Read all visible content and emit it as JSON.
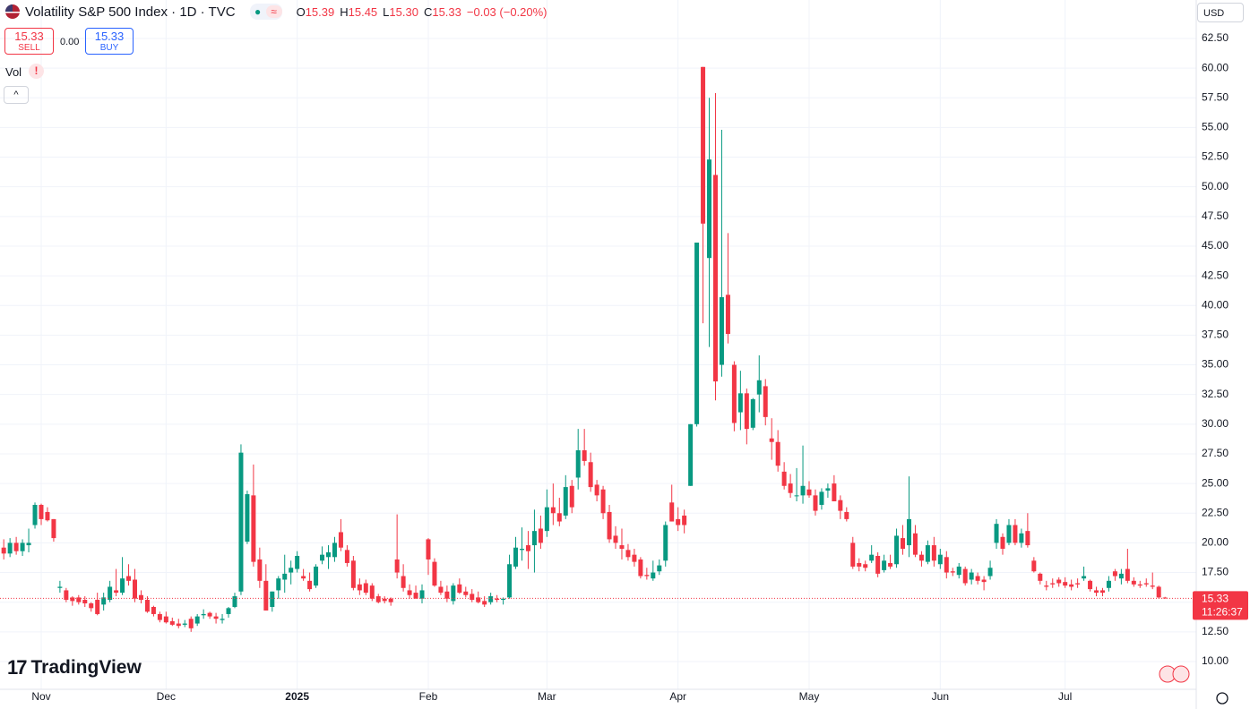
{
  "chart_data": {
    "type": "candlestick",
    "title": "Volatility S&P 500 Index · 1D · TVC",
    "ohlc_header": [
      {
        "label": "O",
        "value": "15.39"
      },
      {
        "label": "H",
        "value": "15.45"
      },
      {
        "label": "L",
        "value": "15.30"
      },
      {
        "label": "C",
        "value": "15.33"
      }
    ],
    "change": "−0.03 (−0.20%)",
    "sell": {
      "price": 15.33,
      "label": "SELL"
    },
    "spread": "0.00",
    "buy": {
      "price": 15.33,
      "label": "BUY"
    },
    "volume_label": "Vol",
    "currency": "USD",
    "branding": "TradingView",
    "up_color": "#089981",
    "down_color": "#f23645",
    "grid": true,
    "candles": [
      [
        19.6,
        20.3,
        18.6,
        19.1
      ],
      [
        19.1,
        20.4,
        18.8,
        20.0
      ],
      [
        20.0,
        20.5,
        19.0,
        19.3
      ],
      [
        19.3,
        20.3,
        18.9,
        20.0
      ],
      [
        19.8,
        21.2,
        19.2,
        20.0
      ],
      [
        21.5,
        23.4,
        21.2,
        23.2
      ],
      [
        23.2,
        23.3,
        21.5,
        22.0
      ],
      [
        22.6,
        23.0,
        21.8,
        21.9
      ],
      [
        22.0,
        22.0,
        20.1,
        20.4
      ],
      [
        16.2,
        16.8,
        15.8,
        16.3
      ],
      [
        16.0,
        16.2,
        15.0,
        15.2
      ],
      [
        15.4,
        15.5,
        14.7,
        15.1
      ],
      [
        15.4,
        15.6,
        14.8,
        15.0
      ],
      [
        15.2,
        15.5,
        14.6,
        14.9
      ],
      [
        14.9,
        15.0,
        14.2,
        14.5
      ],
      [
        15.2,
        15.8,
        13.9,
        14.0
      ],
      [
        14.8,
        15.8,
        14.3,
        15.4
      ],
      [
        15.2,
        16.8,
        15.0,
        16.3
      ],
      [
        16.0,
        17.8,
        15.5,
        15.8
      ],
      [
        15.8,
        18.8,
        15.6,
        17.0
      ],
      [
        17.2,
        18.2,
        16.4,
        16.8
      ],
      [
        16.9,
        17.8,
        15.0,
        15.3
      ],
      [
        15.6,
        16.0,
        14.9,
        15.2
      ],
      [
        15.2,
        15.5,
        14.1,
        14.2
      ],
      [
        14.6,
        14.7,
        13.8,
        14.0
      ],
      [
        14.0,
        14.2,
        13.3,
        13.5
      ],
      [
        13.8,
        14.2,
        13.2,
        13.3
      ],
      [
        13.4,
        13.7,
        13.0,
        13.1
      ],
      [
        13.2,
        13.6,
        12.8,
        13.0
      ],
      [
        13.1,
        13.5,
        12.9,
        13.2
      ],
      [
        13.6,
        13.8,
        12.5,
        12.8
      ],
      [
        13.2,
        14.0,
        13.0,
        13.8
      ],
      [
        13.9,
        14.4,
        13.6,
        14.0
      ],
      [
        14.1,
        14.2,
        13.6,
        13.8
      ],
      [
        13.8,
        14.1,
        13.2,
        13.6
      ],
      [
        13.5,
        14.0,
        13.2,
        13.6
      ],
      [
        14.0,
        14.6,
        13.7,
        14.5
      ],
      [
        14.6,
        15.8,
        14.5,
        15.5
      ],
      [
        15.9,
        28.3,
        15.6,
        27.6
      ],
      [
        20.1,
        24.4,
        19.9,
        24.1
      ],
      [
        24.0,
        26.6,
        18.0,
        18.4
      ],
      [
        18.6,
        19.6,
        16.2,
        16.8
      ],
      [
        16.8,
        18.2,
        14.3,
        14.3
      ],
      [
        14.6,
        15.9,
        14.2,
        15.9
      ],
      [
        16.0,
        17.2,
        15.3,
        17.0
      ],
      [
        16.9,
        19.0,
        15.8,
        17.4
      ],
      [
        17.5,
        18.5,
        16.5,
        17.9
      ],
      [
        17.8,
        19.3,
        17.5,
        18.9
      ],
      [
        17.2,
        17.8,
        16.8,
        17.0
      ],
      [
        16.8,
        17.5,
        15.9,
        16.1
      ],
      [
        16.4,
        18.2,
        16.2,
        18.0
      ],
      [
        18.5,
        19.7,
        18.2,
        19.0
      ],
      [
        18.8,
        19.8,
        17.8,
        19.2
      ],
      [
        18.8,
        20.5,
        18.4,
        20.0
      ],
      [
        20.9,
        22.0,
        19.3,
        19.6
      ],
      [
        19.4,
        19.8,
        18.0,
        18.3
      ],
      [
        18.5,
        18.9,
        16.0,
        16.2
      ],
      [
        16.5,
        17.0,
        15.6,
        16.0
      ],
      [
        16.6,
        16.9,
        15.6,
        15.8
      ],
      [
        16.4,
        16.6,
        15.1,
        15.3
      ],
      [
        15.5,
        15.7,
        14.9,
        15.0
      ],
      [
        15.3,
        15.5,
        14.9,
        15.1
      ],
      [
        15.3,
        15.4,
        14.7,
        15.0
      ],
      [
        18.6,
        22.4,
        17.0,
        17.5
      ],
      [
        17.2,
        18.2,
        15.9,
        16.2
      ],
      [
        16.0,
        16.5,
        15.3,
        15.6
      ],
      [
        15.8,
        16.4,
        15.3,
        15.3
      ],
      [
        15.3,
        16.5,
        14.9,
        16.0
      ],
      [
        20.3,
        20.4,
        17.3,
        18.6
      ],
      [
        18.4,
        18.7,
        16.3,
        16.4
      ],
      [
        16.3,
        16.8,
        15.6,
        15.8
      ],
      [
        15.9,
        16.4,
        15.0,
        15.3
      ],
      [
        15.1,
        16.6,
        14.8,
        16.4
      ],
      [
        16.5,
        17.0,
        15.7,
        15.8
      ],
      [
        15.9,
        16.3,
        15.4,
        15.6
      ],
      [
        15.7,
        16.1,
        15.0,
        15.2
      ],
      [
        15.4,
        15.9,
        14.9,
        15.0
      ],
      [
        15.1,
        15.5,
        14.6,
        14.8
      ],
      [
        15.0,
        15.8,
        14.8,
        15.5
      ],
      [
        15.3,
        15.6,
        15.0,
        15.2
      ],
      [
        15.2,
        15.4,
        14.8,
        15.3
      ],
      [
        15.4,
        19.0,
        15.3,
        18.2
      ],
      [
        18.0,
        20.5,
        17.8,
        19.6
      ],
      [
        19.4,
        21.3,
        18.5,
        19.5
      ],
      [
        19.8,
        21.0,
        17.8,
        19.3
      ],
      [
        19.8,
        22.8,
        17.5,
        21.0
      ],
      [
        21.2,
        22.3,
        19.5,
        20.0
      ],
      [
        21.0,
        24.5,
        20.5,
        23.0
      ],
      [
        23.0,
        25.0,
        21.5,
        22.5
      ],
      [
        22.5,
        23.8,
        21.4,
        21.8
      ],
      [
        22.3,
        25.7,
        22.0,
        24.7
      ],
      [
        24.8,
        25.3,
        22.5,
        23.0
      ],
      [
        25.5,
        29.6,
        24.5,
        27.8
      ],
      [
        27.8,
        29.6,
        26.5,
        26.9
      ],
      [
        26.8,
        27.6,
        24.3,
        24.7
      ],
      [
        24.9,
        25.3,
        23.5,
        24.0
      ],
      [
        24.5,
        24.8,
        22.0,
        22.5
      ],
      [
        22.6,
        23.2,
        20.0,
        20.3
      ],
      [
        20.6,
        21.4,
        19.5,
        20.0
      ],
      [
        19.8,
        21.2,
        18.6,
        19.5
      ],
      [
        19.4,
        19.9,
        18.5,
        18.8
      ],
      [
        19.0,
        19.5,
        18.0,
        18.4
      ],
      [
        18.6,
        18.8,
        17.0,
        17.2
      ],
      [
        17.3,
        17.9,
        16.9,
        17.2
      ],
      [
        17.0,
        18.5,
        16.8,
        17.5
      ],
      [
        17.6,
        18.6,
        17.3,
        18.1
      ],
      [
        18.5,
        21.8,
        18.0,
        21.5
      ],
      [
        23.4,
        24.9,
        21.8,
        21.8
      ],
      [
        22.0,
        23.0,
        21.0,
        21.5
      ],
      [
        22.3,
        22.8,
        20.8,
        21.5
      ],
      [
        24.8,
        30.0,
        24.8,
        30.0
      ],
      [
        30.0,
        45.3,
        29.8,
        45.3
      ],
      [
        60.1,
        60.1,
        38.5,
        46.9
      ],
      [
        44.0,
        57.5,
        36.5,
        52.3
      ],
      [
        51.0,
        57.9,
        32.0,
        33.6
      ],
      [
        35.0,
        54.8,
        34.0,
        40.7
      ],
      [
        40.9,
        46.1,
        36.8,
        37.6
      ],
      [
        35.0,
        35.3,
        29.4,
        30.1
      ],
      [
        31.0,
        34.5,
        29.5,
        32.6
      ],
      [
        32.6,
        33.0,
        28.3,
        29.6
      ],
      [
        29.7,
        32.2,
        29.5,
        32.1
      ],
      [
        32.5,
        35.8,
        31.0,
        33.7
      ],
      [
        33.2,
        33.8,
        29.9,
        30.6
      ],
      [
        28.8,
        30.5,
        27.0,
        28.5
      ],
      [
        28.5,
        29.5,
        26.0,
        26.5
      ],
      [
        26.0,
        26.8,
        24.5,
        24.8
      ],
      [
        25.0,
        25.8,
        23.8,
        24.2
      ],
      [
        24.0,
        26.3,
        23.5,
        24.0
      ],
      [
        24.0,
        28.2,
        23.3,
        24.8
      ],
      [
        24.5,
        25.2,
        23.8,
        24.0
      ],
      [
        24.0,
        24.5,
        22.3,
        22.7
      ],
      [
        23.2,
        24.6,
        22.8,
        24.3
      ],
      [
        24.4,
        25.0,
        23.8,
        24.6
      ],
      [
        25.0,
        25.7,
        23.5,
        23.5
      ],
      [
        23.6,
        24.0,
        22.0,
        22.7
      ],
      [
        22.6,
        23.0,
        21.8,
        22.0
      ],
      [
        20.0,
        20.5,
        17.8,
        18.0
      ],
      [
        18.3,
        18.7,
        17.6,
        18.0
      ],
      [
        18.2,
        18.5,
        17.6,
        17.9
      ],
      [
        18.5,
        19.8,
        18.3,
        19.0
      ],
      [
        18.9,
        19.2,
        17.1,
        17.4
      ],
      [
        17.7,
        19.0,
        17.5,
        18.5
      ],
      [
        18.3,
        19.0,
        17.8,
        18.0
      ],
      [
        18.2,
        21.2,
        17.9,
        20.6
      ],
      [
        20.4,
        21.5,
        19.0,
        19.5
      ],
      [
        19.8,
        25.6,
        18.8,
        22.0
      ],
      [
        20.8,
        21.5,
        18.8,
        19.0
      ],
      [
        19.0,
        19.3,
        18.0,
        18.5
      ],
      [
        18.4,
        20.2,
        18.2,
        19.8
      ],
      [
        19.8,
        20.5,
        18.0,
        18.5
      ],
      [
        18.2,
        19.5,
        17.8,
        19.0
      ],
      [
        18.8,
        19.3,
        17.0,
        17.5
      ],
      [
        17.6,
        17.9,
        17.2,
        17.5
      ],
      [
        17.3,
        18.3,
        17.0,
        18.0
      ],
      [
        17.8,
        18.0,
        16.4,
        16.6
      ],
      [
        16.9,
        17.8,
        16.5,
        17.5
      ],
      [
        17.2,
        17.5,
        16.5,
        16.8
      ],
      [
        16.9,
        17.2,
        16.0,
        16.7
      ],
      [
        17.2,
        18.5,
        16.9,
        17.9
      ],
      [
        20.0,
        22.0,
        19.5,
        21.6
      ],
      [
        20.5,
        20.8,
        19.0,
        19.5
      ],
      [
        20.0,
        22.0,
        19.8,
        21.5
      ],
      [
        21.5,
        22.0,
        19.8,
        20.0
      ],
      [
        20.0,
        21.2,
        19.6,
        20.8
      ],
      [
        21.0,
        22.5,
        19.6,
        19.8
      ],
      [
        18.5,
        18.8,
        17.5,
        17.6
      ],
      [
        17.4,
        17.5,
        16.5,
        16.8
      ],
      [
        16.4,
        16.8,
        16.0,
        16.3
      ],
      [
        16.6,
        17.0,
        16.2,
        16.5
      ],
      [
        16.9,
        17.1,
        16.3,
        16.6
      ],
      [
        16.7,
        17.1,
        16.2,
        16.4
      ],
      [
        16.5,
        16.9,
        16.0,
        16.3
      ],
      [
        16.6,
        17.0,
        16.2,
        16.5
      ],
      [
        17.0,
        18.0,
        16.8,
        17.2
      ],
      [
        16.8,
        16.9,
        15.9,
        16.1
      ],
      [
        16.0,
        16.3,
        15.5,
        15.8
      ],
      [
        16.0,
        16.2,
        15.5,
        15.8
      ],
      [
        16.2,
        17.2,
        15.9,
        16.8
      ],
      [
        17.6,
        17.8,
        16.8,
        17.2
      ],
      [
        17.0,
        17.8,
        16.5,
        17.4
      ],
      [
        17.8,
        19.5,
        16.6,
        16.8
      ],
      [
        16.8,
        17.1,
        16.3,
        16.5
      ],
      [
        16.5,
        16.8,
        16.2,
        16.4
      ],
      [
        16.6,
        17.0,
        16.3,
        16.5
      ],
      [
        16.4,
        17.5,
        16.1,
        16.3
      ],
      [
        16.3,
        16.4,
        15.3,
        15.4
      ],
      [
        15.39,
        15.45,
        15.3,
        15.33
      ]
    ],
    "xlim": [
      -0.6,
      191
    ],
    "xticks": [
      {
        "value": 6,
        "label": "Nov"
      },
      {
        "value": 26,
        "label": "Dec"
      },
      {
        "value": 47,
        "label": "2025"
      },
      {
        "value": 68,
        "label": "Feb"
      },
      {
        "value": 87,
        "label": "Mar"
      },
      {
        "value": 108,
        "label": "Apr"
      },
      {
        "value": 129,
        "label": "May"
      },
      {
        "value": 150,
        "label": "Jun"
      },
      {
        "value": 170,
        "label": "Jul"
      }
    ],
    "ylim": [
      7.66,
      65.74
    ],
    "yticks": [
      {
        "value": 10,
        "label": "10.00"
      },
      {
        "value": 12.5,
        "label": "12.50"
      },
      {
        "value": 15,
        "label": "15.00"
      },
      {
        "value": 17.5,
        "label": "17.50"
      },
      {
        "value": 20,
        "label": "20.00"
      },
      {
        "value": 22.5,
        "label": "22.50"
      },
      {
        "value": 25,
        "label": "25.00"
      },
      {
        "value": 27.5,
        "label": "27.50"
      },
      {
        "value": 30,
        "label": "30.00"
      },
      {
        "value": 32.5,
        "label": "32.50"
      },
      {
        "value": 35,
        "label": "35.00"
      },
      {
        "value": 37.5,
        "label": "37.50"
      },
      {
        "value": 40,
        "label": "40.00"
      },
      {
        "value": 42.5,
        "label": "42.50"
      },
      {
        "value": 45,
        "label": "45.00"
      },
      {
        "value": 47.5,
        "label": "47.50"
      },
      {
        "value": 50,
        "label": "50.00"
      },
      {
        "value": 52.5,
        "label": "52.50"
      },
      {
        "value": 55,
        "label": "55.00"
      },
      {
        "value": 57.5,
        "label": "57.50"
      },
      {
        "value": 60,
        "label": "60.00"
      },
      {
        "value": 62.5,
        "label": "62.50"
      }
    ],
    "last_price": 15.33,
    "countdown": "11:26:37"
  }
}
